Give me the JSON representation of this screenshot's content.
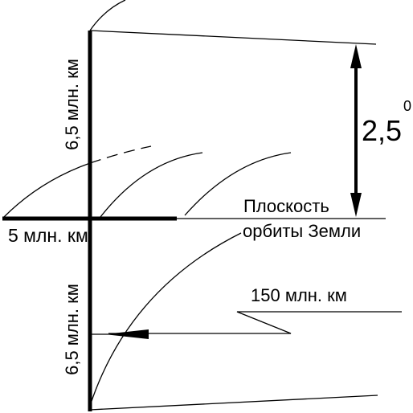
{
  "labels": {
    "upper_height": "6,5 млн. км",
    "angle": "2,5",
    "angle_degree": "0",
    "plane_line1": "Плоскость",
    "plane_line2": "орбиты Земли",
    "width": "5 млн. км",
    "lower_height": "6,5 млн. км",
    "distance": "150 млн. км"
  }
}
